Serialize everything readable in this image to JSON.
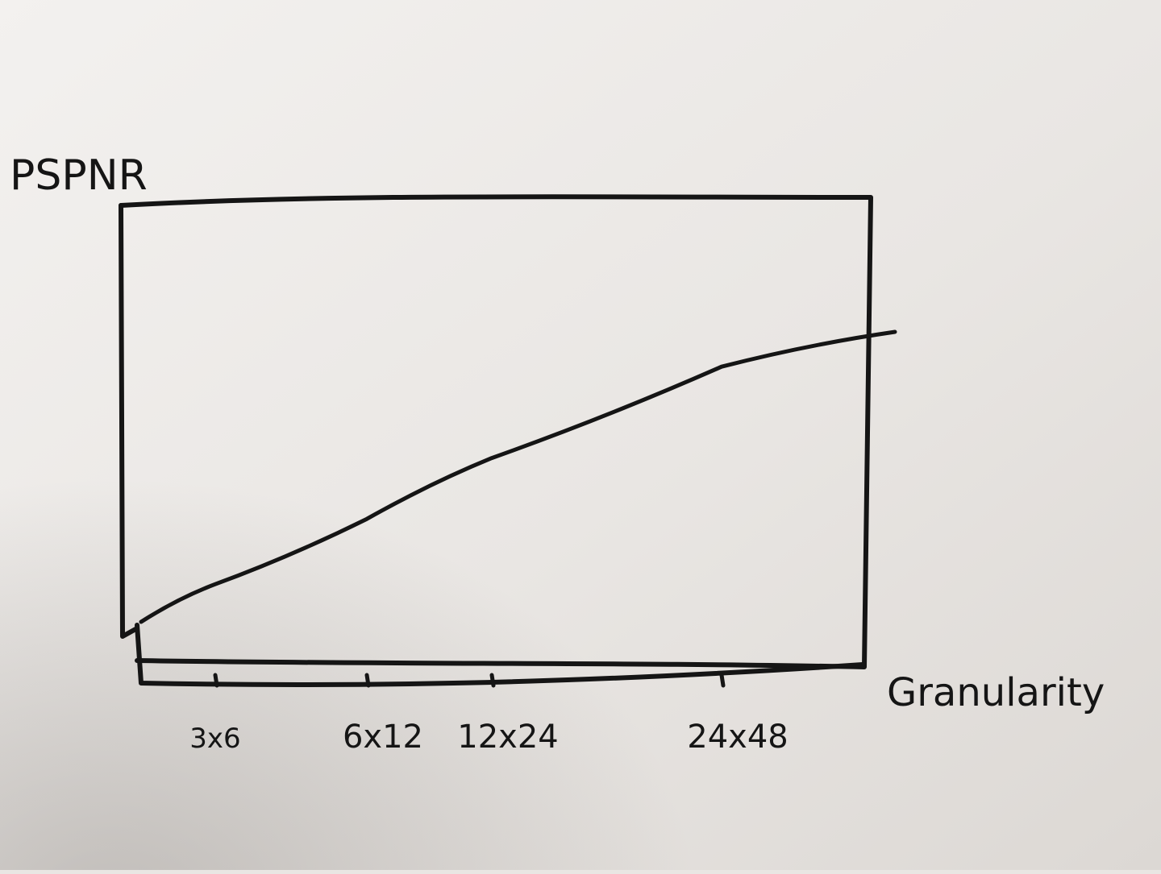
{
  "chart_data": {
    "type": "line",
    "ylabel": "PSPNR",
    "xlabel": "Granularity",
    "categories": [
      "3x6",
      "6x12",
      "12x24",
      "24x48"
    ],
    "series": [
      {
        "values": [
          1.2,
          2.7,
          4.1,
          6.2
        ]
      }
    ],
    "ylim": [
      0,
      10
    ],
    "grid": false,
    "legend": "none"
  },
  "colors": {
    "paper": "#e9e6e3",
    "ink": "#151515"
  }
}
